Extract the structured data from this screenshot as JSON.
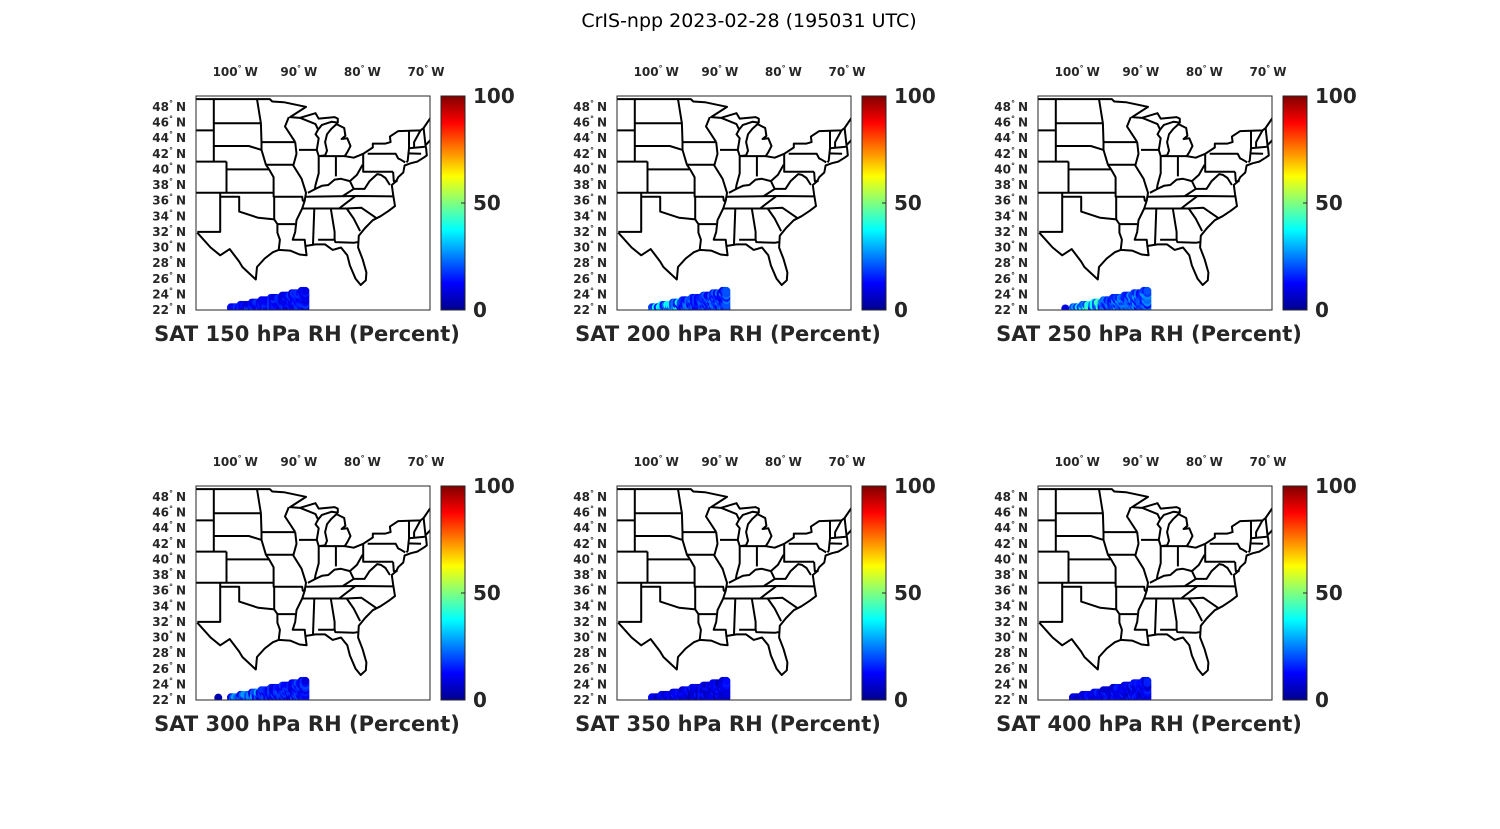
{
  "figure_title": "CrIS-npp 2023-02-28 (195031 UTC)",
  "chart_data": {
    "type": "scatter",
    "subtype": "map-scatter",
    "title": "CrIS-npp 2023-02-28 (195031 UTC)",
    "lon_range": [
      -106.8,
      -70
    ],
    "lat_range": [
      22,
      49.4
    ],
    "lon_tick_labels": [
      "100",
      "90",
      "80",
      "70"
    ],
    "lon_tick_values": [
      -100,
      -90,
      -80,
      -70
    ],
    "lon_suffix": "W",
    "lat_tick_labels": [
      "22",
      "24",
      "26",
      "28",
      "30",
      "32",
      "34",
      "36",
      "38",
      "40",
      "42",
      "44",
      "46",
      "48"
    ],
    "lat_tick_values": [
      22,
      24,
      26,
      28,
      30,
      32,
      34,
      36,
      38,
      40,
      42,
      44,
      46,
      48
    ],
    "lat_suffix": "N",
    "degree_symbol": "°",
    "colormap": "jet",
    "clim": [
      0,
      100
    ],
    "colorbar_tick_labels": [
      "100",
      "50",
      "0"
    ],
    "colorbar_tick_values": [
      100,
      50,
      0
    ],
    "swath": {
      "lon_range": [
        -101.5,
        -89.5
      ],
      "lat_range": [
        22,
        24.6
      ]
    },
    "panels": [
      {
        "title": "SAT 150 hPa RH (Percent)",
        "level_hPa": 150,
        "typical_value_range": [
          8,
          18
        ],
        "high_values_west": null,
        "outlier": null
      },
      {
        "title": "SAT 200 hPa RH (Percent)",
        "level_hPa": 200,
        "typical_value_range": [
          10,
          25
        ],
        "high_values_west": 42,
        "outlier": null
      },
      {
        "title": "SAT 250 hPa RH (Percent)",
        "level_hPa": 250,
        "typical_value_range": [
          12,
          28
        ],
        "high_values_west": 45,
        "outlier": {
          "lon": -102.5,
          "lat": 22.2,
          "value": 10
        }
      },
      {
        "title": "SAT 300 hPa RH (Percent)",
        "level_hPa": 300,
        "typical_value_range": [
          8,
          20
        ],
        "high_values_west": 30,
        "outlier": {
          "lon": -103.3,
          "lat": 22.3,
          "value": 5
        }
      },
      {
        "title": "SAT 350 hPa RH (Percent)",
        "level_hPa": 350,
        "typical_value_range": [
          5,
          15
        ],
        "high_values_west": null,
        "outlier": null
      },
      {
        "title": "SAT 400 hPa RH (Percent)",
        "level_hPa": 400,
        "typical_value_range": [
          6,
          16
        ],
        "high_values_west": null,
        "outlier": null
      }
    ]
  }
}
